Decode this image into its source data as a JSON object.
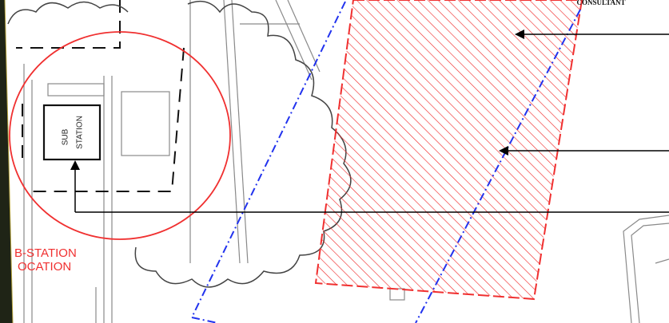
{
  "header": {
    "consultant": "CONSULTANT"
  },
  "labels": {
    "sub_station": [
      "SUB",
      "STATION"
    ],
    "location": [
      "B-STATION",
      "OCATION"
    ]
  }
}
